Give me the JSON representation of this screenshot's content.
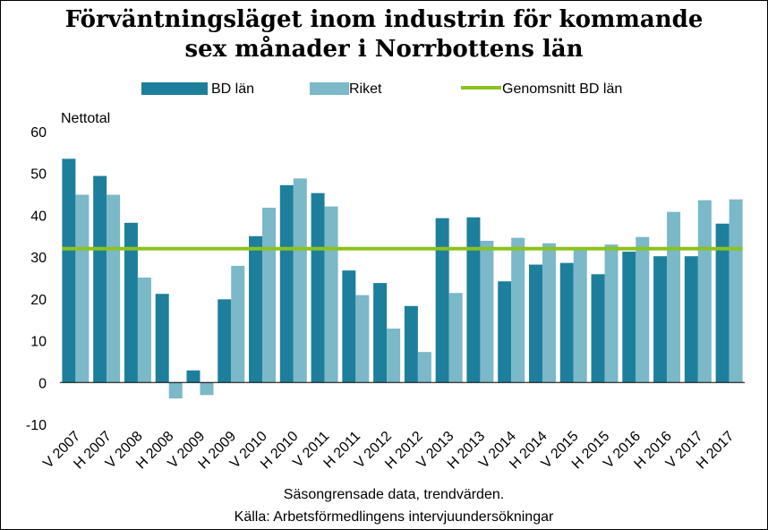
{
  "chart_data": {
    "type": "bar",
    "title_lines": [
      "Förväntningsläget inom industrin för kommande",
      "sex månader i Norrbottens län"
    ],
    "ylabel": "Nettotal",
    "xlabel": "",
    "footnote_lines": [
      "Säsongrensade data, trendvärden.",
      "Källa: Arbetsförmedlingens  intervjuundersökningar"
    ],
    "ylim": [
      -10,
      60
    ],
    "yticks": [
      -10,
      0,
      10,
      20,
      30,
      40,
      50,
      60
    ],
    "grid": false,
    "legend_position": "top",
    "categories": [
      "V 2007",
      "H 2007",
      "V 2008",
      "H 2008",
      "V 2009",
      "H 2009",
      "V 2010",
      "H 2010",
      "V 2011",
      "H 2011",
      "V 2012",
      "H 2012",
      "V 2013",
      "H 2013",
      "V 2014",
      "H 2014",
      "V 2015",
      "H 2015",
      "V 2016",
      "H 2016",
      "V 2017",
      "H 2017"
    ],
    "series": [
      {
        "name": "BD län",
        "color": "#1d7f9c",
        "values": [
          53.5,
          49.4,
          38.2,
          21.2,
          2.9,
          19.9,
          35.0,
          47.2,
          45.3,
          26.8,
          23.8,
          18.3,
          39.3,
          39.5,
          24.2,
          28.2,
          28.6,
          25.9,
          31.3,
          30.2,
          30.2,
          38.0
        ]
      },
      {
        "name": "Riket",
        "color": "#7bb8c8",
        "values": [
          44.9,
          44.9,
          25.1,
          -3.8,
          -3.0,
          27.9,
          41.8,
          48.8,
          42.1,
          20.9,
          12.9,
          7.3,
          21.4,
          33.9,
          34.6,
          33.3,
          32.0,
          33.0,
          34.8,
          40.8,
          43.6,
          43.8
        ]
      }
    ],
    "reference_line": {
      "name": "Genomsnitt BD län",
      "color": "#8cc21f",
      "value": 32.0
    }
  }
}
